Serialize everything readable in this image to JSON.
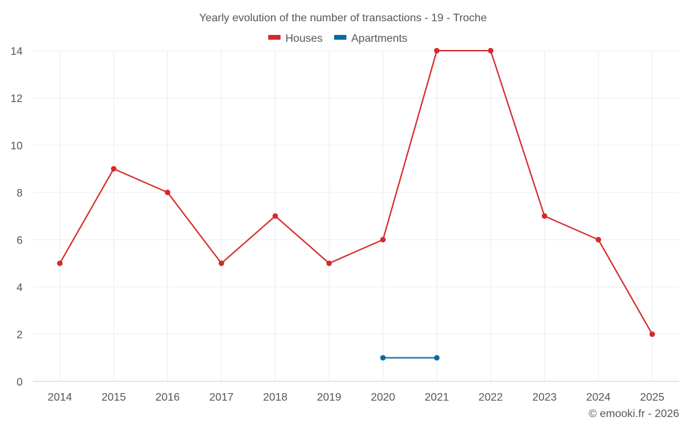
{
  "chart_data": {
    "type": "line",
    "title": "Yearly evolution of the number of transactions - 19 - Troche",
    "categories": [
      "2014",
      "2015",
      "2016",
      "2017",
      "2018",
      "2019",
      "2020",
      "2021",
      "2022",
      "2023",
      "2024",
      "2025"
    ],
    "series": [
      {
        "name": "Houses",
        "color": "#d42a2a",
        "values": [
          5,
          9,
          8,
          5,
          7,
          5,
          6,
          14,
          14,
          7,
          6,
          2
        ]
      },
      {
        "name": "Apartments",
        "color": "#0a6aa1",
        "values": [
          null,
          null,
          null,
          null,
          null,
          null,
          1,
          1,
          null,
          null,
          null,
          null
        ]
      }
    ],
    "yticks": [
      0,
      2,
      4,
      6,
      8,
      10,
      12,
      14
    ],
    "ylim": [
      0,
      14
    ],
    "xlabel": "",
    "ylabel": "",
    "legend_position": "top-center",
    "grid": true
  },
  "credit": "© emooki.fr - 2026"
}
